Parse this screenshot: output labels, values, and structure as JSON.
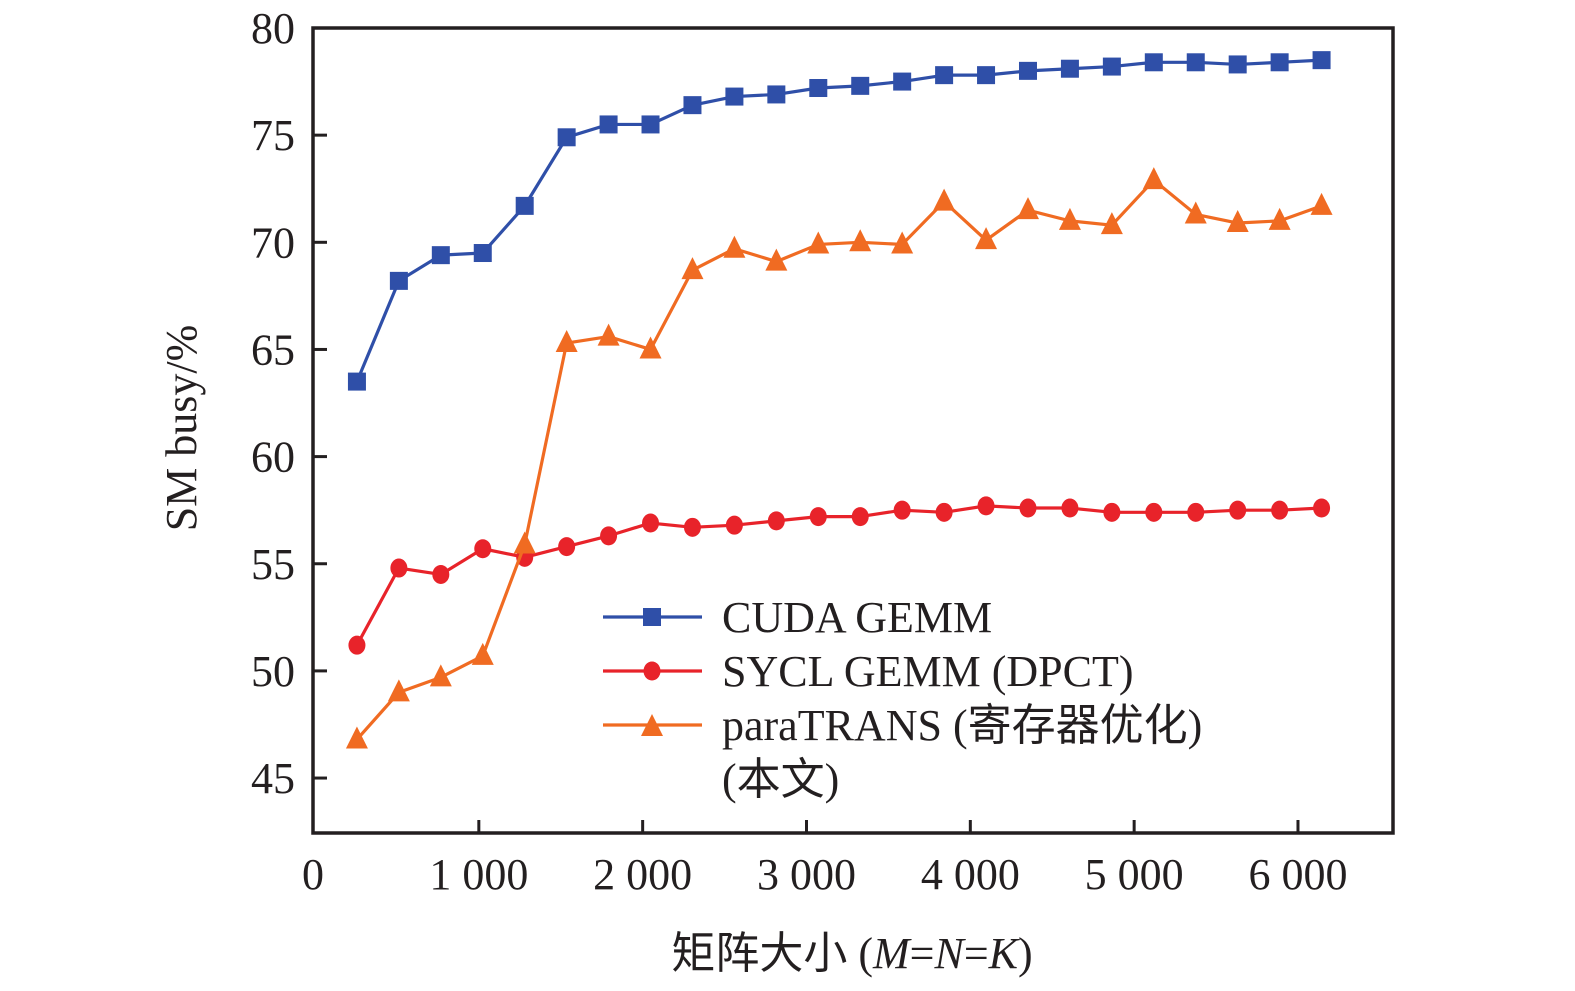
{
  "chart_data": {
    "type": "line",
    "title": "",
    "xlabel": "矩阵大小 (M=N=K)",
    "xlabel_parts": {
      "prefix": "矩阵大小 (",
      "m": "M",
      "eq1": "=",
      "n": "N",
      "eq2": "=",
      "k": "K",
      "suffix": ")"
    },
    "ylabel": "SM busy/%",
    "xlim": [
      0,
      6600
    ],
    "ylim": [
      43,
      80
    ],
    "xticks": [
      0,
      1000,
      2000,
      3000,
      4000,
      5000,
      6000
    ],
    "xtick_labels": [
      "0",
      "1 000",
      "2 000",
      "3 000",
      "4 000",
      "5 000",
      "6 000"
    ],
    "yticks": [
      45,
      50,
      55,
      60,
      65,
      70,
      75,
      80
    ],
    "ytick_labels": [
      "45",
      "50",
      "55",
      "60",
      "65",
      "70",
      "75",
      "80"
    ],
    "grid": false,
    "legend_position": "lower-center",
    "x": [
      256,
      512,
      768,
      1024,
      1280,
      1536,
      1792,
      2048,
      2304,
      2560,
      2816,
      3072,
      3328,
      3584,
      3840,
      4096,
      4352,
      4608,
      4864,
      5120,
      5376,
      5632,
      5888,
      6144
    ],
    "series": [
      {
        "name": "CUDA GEMM",
        "color": "#2f4fa8",
        "marker": "square",
        "values": [
          63.5,
          68.2,
          69.4,
          69.5,
          71.7,
          74.9,
          75.5,
          75.5,
          76.4,
          76.8,
          76.9,
          77.2,
          77.3,
          77.5,
          77.8,
          77.8,
          78.0,
          78.1,
          78.2,
          78.4,
          78.4,
          78.3,
          78.4,
          78.5
        ]
      },
      {
        "name": "SYCL GEMM (DPCT)",
        "color": "#e8232a",
        "marker": "circle",
        "values": [
          51.2,
          54.8,
          54.5,
          55.7,
          55.3,
          55.8,
          56.3,
          56.9,
          56.7,
          56.8,
          57.0,
          57.2,
          57.2,
          57.5,
          57.4,
          57.7,
          57.6,
          57.6,
          57.4,
          57.4,
          57.4,
          57.5,
          57.5,
          57.6
        ]
      },
      {
        "name": "paraTRANS (寄存器优化)",
        "name_line2": "(本文)",
        "color": "#f06b22",
        "marker": "triangle",
        "values": [
          46.8,
          49.0,
          49.7,
          50.7,
          55.9,
          65.3,
          65.6,
          65.0,
          68.7,
          69.7,
          69.1,
          69.9,
          70.0,
          69.9,
          71.9,
          70.1,
          71.5,
          71.0,
          70.8,
          72.9,
          71.3,
          70.9,
          71.0,
          71.7
        ]
      }
    ]
  }
}
